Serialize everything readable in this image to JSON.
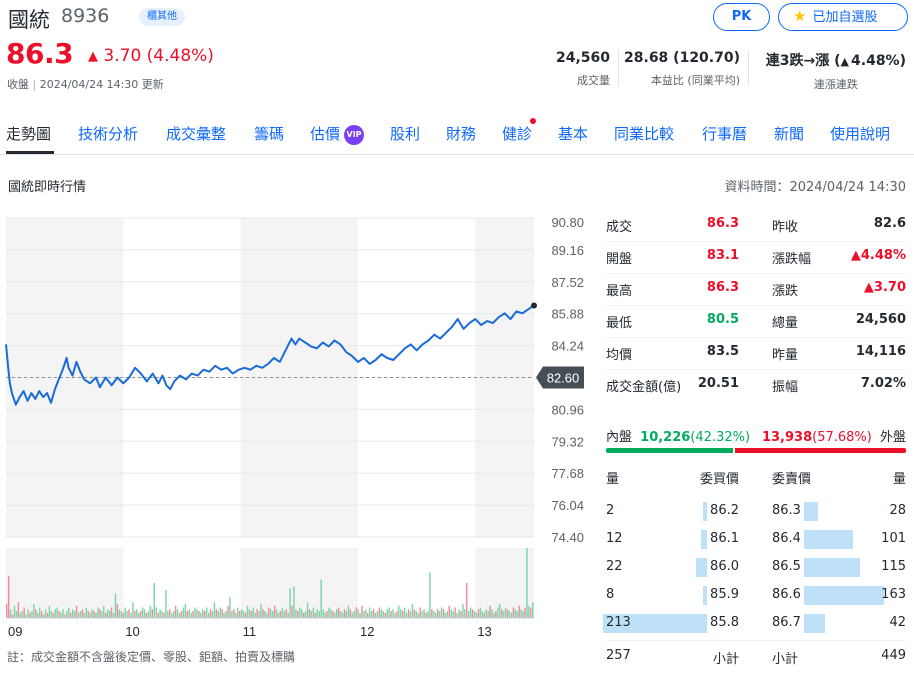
{
  "header": {
    "name": "國統",
    "code": "8936",
    "market_badge": "櫃其他",
    "price": "86.3",
    "change": "3.70 (4.48%)",
    "status_label": "收盤",
    "status_time": "2024/04/24 14:30 更新",
    "pk_label": "PK",
    "watchlist_label": "已加自選股",
    "colors": {
      "up": "#eb0f29",
      "down": "#00ab5e",
      "accent": "#0f69ff"
    }
  },
  "summary_stats": [
    {
      "value": "24,560",
      "label": "成交量",
      "tone": "neutral"
    },
    {
      "value": "28.68 (120.70)",
      "label": "本益比 (同業平均)",
      "tone": "neutral"
    },
    {
      "value_prefix": "連3跌→漲 (",
      "value_main": "4.48%",
      "value_suffix": ")",
      "label": "連漲連跌",
      "tone": "up"
    }
  ],
  "tabs": [
    {
      "label": "走勢圖",
      "active": true
    },
    {
      "label": "技術分析"
    },
    {
      "label": "成交彙整"
    },
    {
      "label": "籌碼"
    },
    {
      "label": "估價",
      "badge": "VIP"
    },
    {
      "label": "股利"
    },
    {
      "label": "財務"
    },
    {
      "label": "健診",
      "dot": true
    },
    {
      "label": "基本"
    },
    {
      "label": "同業比較"
    },
    {
      "label": "行事曆"
    },
    {
      "label": "新聞"
    },
    {
      "label": "使用說明"
    }
  ],
  "section": {
    "title": "國統即時行情",
    "data_time": "資料時間：2024/04/24 14:30"
  },
  "chart_data": {
    "type": "line",
    "title": "",
    "x_tick_labels": [
      "09",
      "10",
      "11",
      "12",
      "13"
    ],
    "y_tick_labels": [
      "90.80",
      "89.16",
      "87.52",
      "85.88",
      "84.24",
      "82.60",
      "80.96",
      "79.32",
      "77.68",
      "76.04",
      "74.40"
    ],
    "ylim": [
      74.4,
      90.8
    ],
    "reference_price": 82.6,
    "reference_label": "82.60",
    "x_range_minutes": [
      0,
      270
    ],
    "series": [
      {
        "points": [
          [
            0,
            84.3
          ],
          [
            1,
            83.2
          ],
          [
            2,
            82.3
          ],
          [
            3,
            81.8
          ],
          [
            5,
            81.2
          ],
          [
            7,
            81.6
          ],
          [
            9,
            81.9
          ],
          [
            11,
            81.4
          ],
          [
            13,
            81.8
          ],
          [
            15,
            81.5
          ],
          [
            17,
            81.9
          ],
          [
            19,
            81.6
          ],
          [
            21,
            81.8
          ],
          [
            23,
            81.3
          ],
          [
            25,
            82.0
          ],
          [
            27,
            82.5
          ],
          [
            29,
            83.0
          ],
          [
            31,
            83.6
          ],
          [
            32,
            83.1
          ],
          [
            34,
            82.7
          ],
          [
            36,
            83.4
          ],
          [
            38,
            82.9
          ],
          [
            40,
            82.5
          ],
          [
            43,
            82.3
          ],
          [
            46,
            82.6
          ],
          [
            48,
            82.1
          ],
          [
            51,
            82.6
          ],
          [
            54,
            82.2
          ],
          [
            57,
            82.6
          ],
          [
            60,
            82.3
          ],
          [
            63,
            82.6
          ],
          [
            66,
            83.1
          ],
          [
            69,
            82.8
          ],
          [
            72,
            82.4
          ],
          [
            75,
            82.8
          ],
          [
            78,
            82.3
          ],
          [
            80,
            82.7
          ],
          [
            82,
            82.2
          ],
          [
            84,
            82.0
          ],
          [
            86,
            82.4
          ],
          [
            89,
            82.7
          ],
          [
            92,
            82.5
          ],
          [
            95,
            82.8
          ],
          [
            98,
            82.7
          ],
          [
            101,
            83.0
          ],
          [
            104,
            82.9
          ],
          [
            107,
            83.2
          ],
          [
            110,
            83.0
          ],
          [
            113,
            83.1
          ],
          [
            116,
            82.8
          ],
          [
            119,
            83.0
          ],
          [
            122,
            83.1
          ],
          [
            125,
            83.0
          ],
          [
            128,
            83.2
          ],
          [
            131,
            83.1
          ],
          [
            134,
            83.3
          ],
          [
            137,
            83.6
          ],
          [
            140,
            83.4
          ],
          [
            143,
            84.0
          ],
          [
            146,
            84.6
          ],
          [
            148,
            84.3
          ],
          [
            150,
            84.6
          ],
          [
            153,
            84.4
          ],
          [
            156,
            84.2
          ],
          [
            159,
            84.1
          ],
          [
            162,
            84.4
          ],
          [
            165,
            84.2
          ],
          [
            168,
            84.5
          ],
          [
            171,
            84.3
          ],
          [
            174,
            83.9
          ],
          [
            177,
            83.7
          ],
          [
            180,
            83.4
          ],
          [
            183,
            83.6
          ],
          [
            186,
            83.3
          ],
          [
            189,
            83.5
          ],
          [
            192,
            83.8
          ],
          [
            195,
            83.6
          ],
          [
            198,
            83.5
          ],
          [
            201,
            83.8
          ],
          [
            204,
            84.1
          ],
          [
            207,
            84.3
          ],
          [
            210,
            84.0
          ],
          [
            213,
            84.3
          ],
          [
            216,
            84.5
          ],
          [
            219,
            84.8
          ],
          [
            222,
            84.6
          ],
          [
            225,
            84.9
          ],
          [
            228,
            85.2
          ],
          [
            231,
            85.6
          ],
          [
            234,
            85.1
          ],
          [
            237,
            85.4
          ],
          [
            240,
            85.6
          ],
          [
            243,
            85.3
          ],
          [
            246,
            85.5
          ],
          [
            249,
            85.4
          ],
          [
            252,
            85.7
          ],
          [
            255,
            85.9
          ],
          [
            258,
            85.6
          ],
          [
            261,
            86.0
          ],
          [
            264,
            85.9
          ],
          [
            267,
            86.1
          ],
          [
            270,
            86.3
          ]
        ]
      }
    ],
    "volume": {
      "bars": [
        8,
        3,
        5,
        2,
        7,
        4,
        9,
        3,
        4,
        6,
        2,
        5,
        3,
        4,
        8,
        5,
        3,
        6,
        4,
        2,
        5,
        3,
        7,
        4,
        3,
        5,
        6,
        4,
        3,
        5,
        2,
        4,
        6,
        3,
        5,
        4,
        7,
        3,
        4,
        5,
        3,
        6,
        4,
        3,
        5,
        4,
        3,
        6,
        5,
        4,
        7,
        3,
        5,
        4,
        6,
        3,
        4,
        8,
        5,
        4,
        3,
        6,
        4,
        5,
        3,
        9,
        4,
        5,
        3,
        4,
        6,
        5,
        3,
        4,
        7,
        5,
        4,
        6,
        3,
        5,
        4,
        3,
        6,
        4,
        5,
        3,
        4,
        7,
        5,
        3,
        4,
        6,
        8,
        4,
        5,
        3,
        4,
        6,
        5,
        4,
        3,
        5,
        4,
        6,
        3,
        5,
        4,
        9,
        5,
        4,
        6,
        5,
        3,
        4,
        7,
        12,
        4,
        5,
        3,
        6,
        4,
        5,
        4,
        3,
        7,
        5,
        4,
        6,
        3,
        5,
        4,
        8,
        5,
        4,
        3,
        6,
        5,
        4,
        7,
        5,
        3,
        4,
        6,
        4,
        5,
        3,
        4,
        7,
        18,
        5,
        4,
        6,
        5,
        3,
        4,
        9,
        5,
        4,
        6,
        3,
        5,
        4,
        7,
        5,
        3,
        4,
        6,
        5,
        4,
        3,
        5,
        6,
        4,
        3,
        5,
        4,
        7,
        5,
        3,
        4,
        6,
        5,
        3,
        7,
        4,
        5,
        3,
        6,
        4,
        5,
        3,
        4,
        6,
        5,
        4,
        3,
        5,
        6,
        4,
        5,
        3,
        4,
        7,
        5,
        4,
        6,
        3,
        5,
        4,
        8,
        5,
        4,
        3,
        6,
        4,
        5,
        3,
        4,
        6,
        5,
        4,
        3,
        5,
        4,
        6,
        5,
        3,
        4,
        7,
        5,
        4,
        6,
        3,
        5,
        4,
        8,
        5,
        3,
        4,
        6,
        5,
        4,
        3,
        5,
        6,
        4,
        3,
        5,
        4,
        7,
        5,
        3,
        4,
        6,
        8,
        5,
        4,
        6,
        5,
        4,
        3,
        6,
        5,
        4,
        7,
        5,
        4,
        6,
        5,
        7,
        6,
        9
      ],
      "highlights": [
        [
          1,
          24
        ],
        [
          56,
          14
        ],
        [
          76,
          20
        ],
        [
          82,
          16
        ],
        [
          146,
          17
        ],
        [
          162,
          22
        ],
        [
          218,
          26
        ],
        [
          237,
          20
        ],
        [
          268,
          40
        ]
      ]
    }
  },
  "quote": {
    "left": [
      {
        "label": "成交",
        "value": "86.3",
        "tone": "up"
      },
      {
        "label": "開盤",
        "value": "83.1",
        "tone": "up"
      },
      {
        "label": "最高",
        "value": "86.3",
        "tone": "up"
      },
      {
        "label": "最低",
        "value": "80.5",
        "tone": "down"
      },
      {
        "label": "均價",
        "value": "83.5",
        "tone": "neutral"
      },
      {
        "label": "成交金額(億)",
        "value": "20.51",
        "tone": "neutral"
      }
    ],
    "right": [
      {
        "label": "昨收",
        "value": "82.6",
        "tone": "neutral"
      },
      {
        "label": "漲跌幅",
        "value": "▲4.48%",
        "tone": "up"
      },
      {
        "label": "漲跌",
        "value": "▲3.70",
        "tone": "up"
      },
      {
        "label": "總量",
        "value": "24,560",
        "tone": "neutral"
      },
      {
        "label": "昨量",
        "value": "14,116",
        "tone": "neutral"
      },
      {
        "label": "振幅",
        "value": "7.02%",
        "tone": "neutral"
      }
    ]
  },
  "inner_outer": {
    "inner_label": "內盤",
    "inner_value": "10,226",
    "inner_pct": "(42.32%)",
    "outer_value": "13,938",
    "outer_pct": "(57.68%)",
    "outer_label": "外盤",
    "inner_fraction": 0.4232
  },
  "order_book": {
    "headers": {
      "bid_qty": "量",
      "bid_price": "委買價",
      "ask_price": "委賣價",
      "ask_qty": "量"
    },
    "rows": [
      {
        "bid_qty": "2",
        "bid_price": "86.2",
        "ask_price": "86.3",
        "ask_qty": "28",
        "bid_n": 2,
        "ask_n": 28
      },
      {
        "bid_qty": "12",
        "bid_price": "86.1",
        "ask_price": "86.4",
        "ask_qty": "101",
        "bid_n": 12,
        "ask_n": 101
      },
      {
        "bid_qty": "22",
        "bid_price": "86.0",
        "ask_price": "86.5",
        "ask_qty": "115",
        "bid_n": 22,
        "ask_n": 115
      },
      {
        "bid_qty": "8",
        "bid_price": "85.9",
        "ask_price": "86.6",
        "ask_qty": "163",
        "bid_n": 8,
        "ask_n": 163
      },
      {
        "bid_qty": "213",
        "bid_price": "85.8",
        "ask_price": "86.7",
        "ask_qty": "42",
        "bid_n": 213,
        "ask_n": 42
      }
    ],
    "bid_total": "257",
    "bid_total_label": "小計",
    "ask_total_label": "小計",
    "ask_total": "449"
  },
  "footnote": "註：成交金額不含盤後定價、零股、鉅額、拍賣及標購"
}
